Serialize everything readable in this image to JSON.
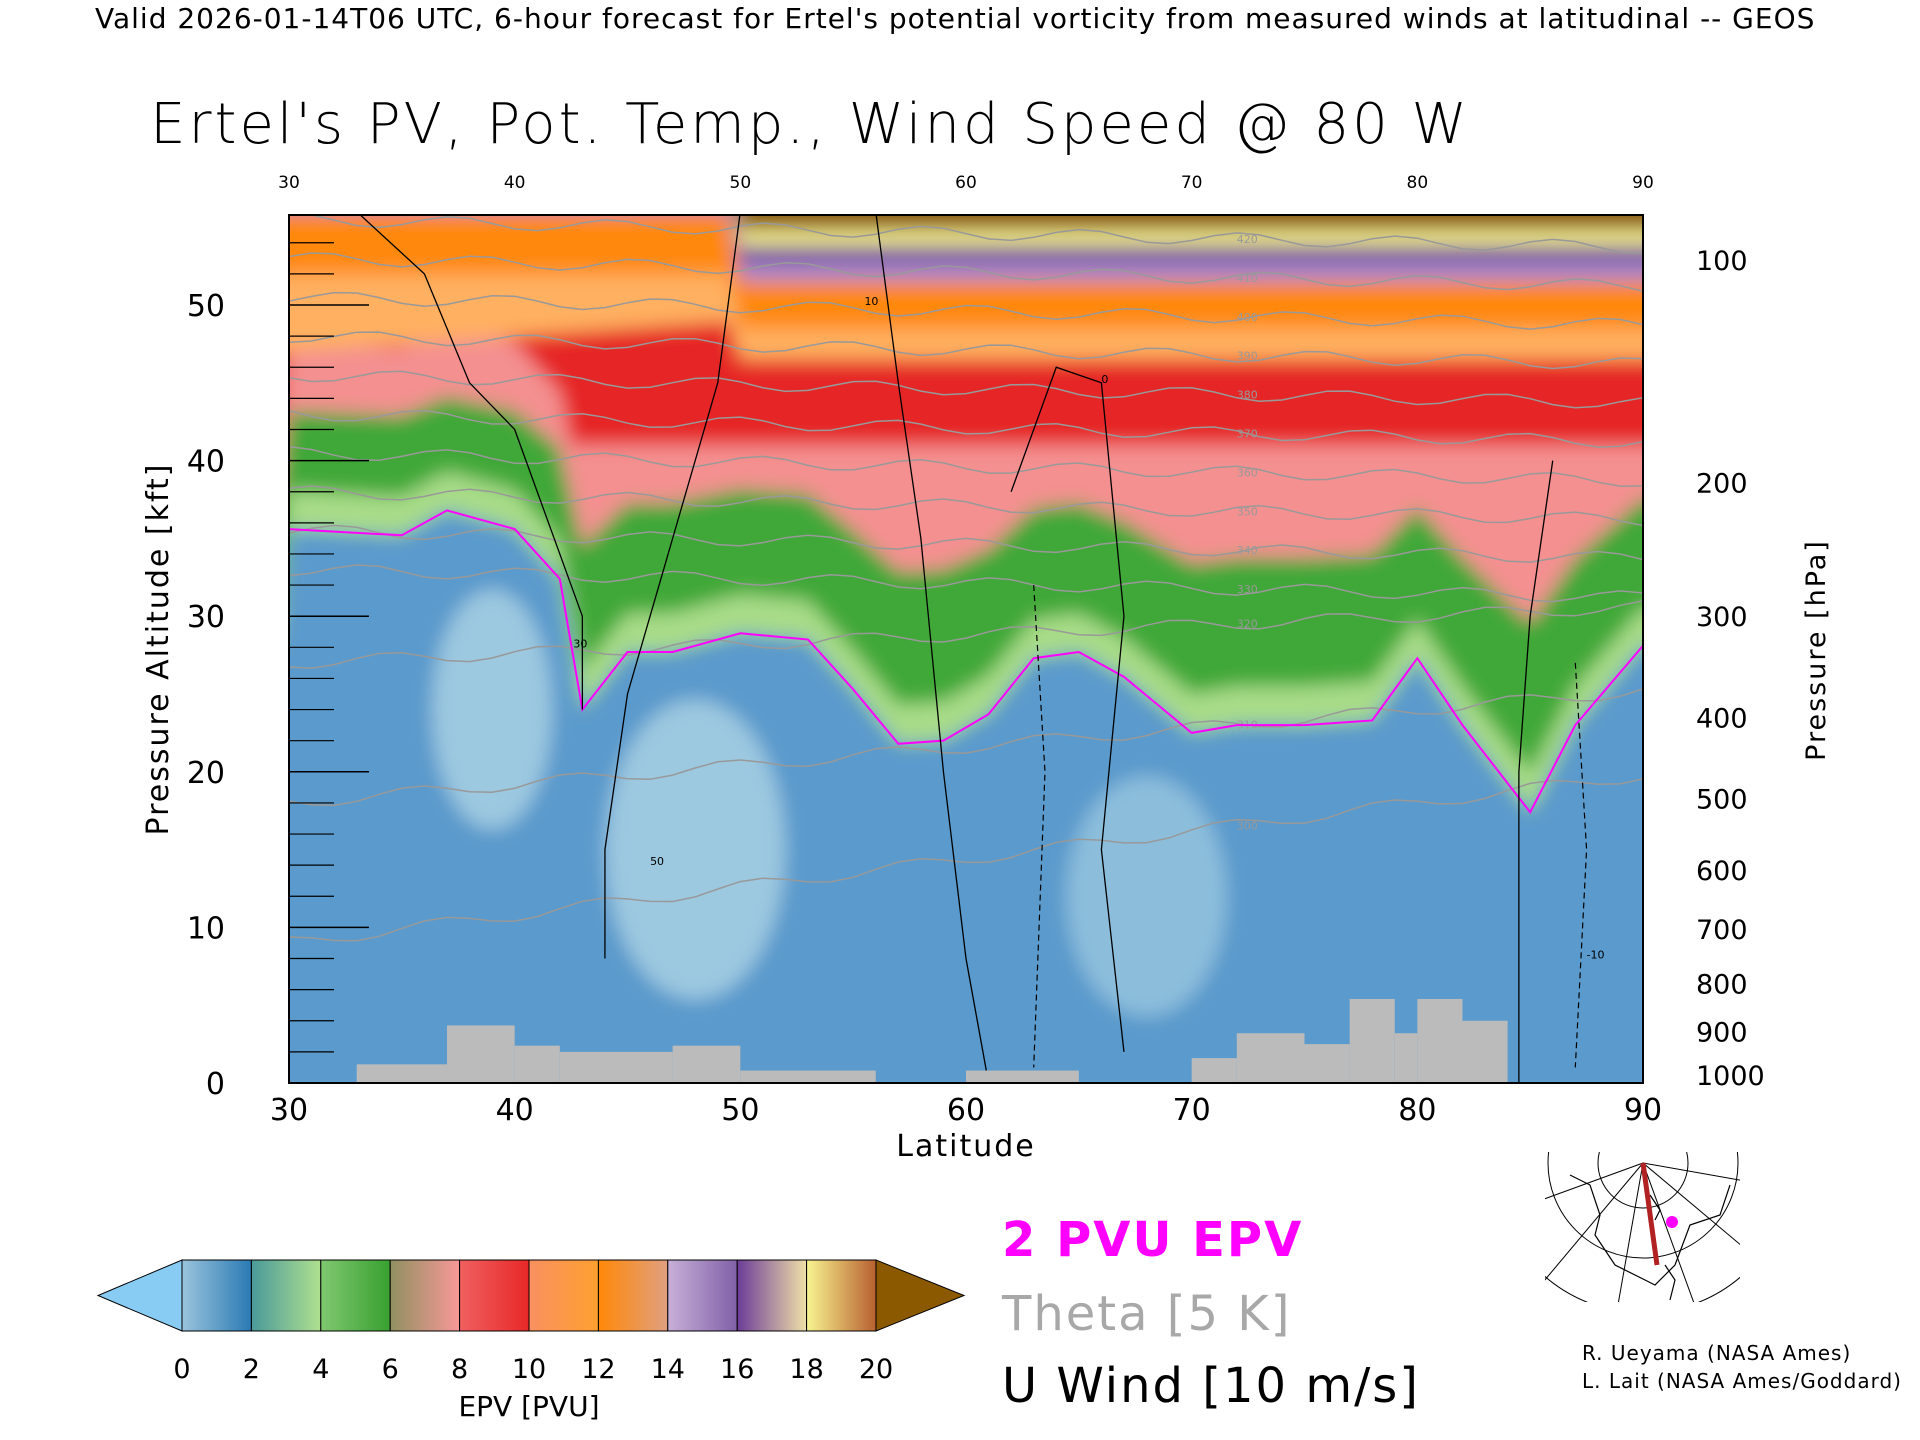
{
  "header": "Valid 2026-01-14T06 UTC, 6-hour forecast for Ertel's potential vorticity from measured winds at latitudinal -- GEOS",
  "chart_data": {
    "type": "heatmap",
    "title": "Ertel's PV, Pot. Temp., Wind Speed @ 80 W",
    "xlabel": "Latitude",
    "ylabel_left": "Pressure Altitude [kft]",
    "ylabel_right": "Pressure [hPa]",
    "xlim": [
      30,
      90
    ],
    "ylim_kft": [
      0,
      55.8
    ],
    "x_ticks": [
      "30",
      "40",
      "50",
      "60",
      "70",
      "80",
      "90"
    ],
    "x_tick_values": [
      30,
      40,
      50,
      60,
      70,
      80,
      90
    ],
    "y_ticks_left": [
      "0",
      "10",
      "20",
      "30",
      "40",
      "50"
    ],
    "y_tick_values_left": [
      0,
      10,
      20,
      30,
      40,
      50
    ],
    "y_ticks_right": [
      {
        "label": "100",
        "kft": 52.9
      },
      {
        "label": "200",
        "kft": 38.6
      },
      {
        "label": "300",
        "kft": 30.0
      },
      {
        "label": "400",
        "kft": 23.5
      },
      {
        "label": "500",
        "kft": 18.3
      },
      {
        "label": "600",
        "kft": 13.7
      },
      {
        "label": "700",
        "kft": 9.9
      },
      {
        "label": "800",
        "kft": 6.4
      },
      {
        "label": "900",
        "kft": 3.3
      },
      {
        "label": "1000",
        "kft": 0.5
      }
    ],
    "tropopause_2pvu_kft": {
      "lat": [
        30,
        35,
        37,
        40,
        42,
        43,
        45,
        47,
        50,
        53,
        55,
        57,
        59,
        61,
        63,
        65,
        67,
        70,
        72,
        75,
        78,
        80,
        82,
        85,
        87,
        90
      ],
      "kft": [
        35.6,
        35.2,
        36.8,
        35.6,
        32.4,
        24.0,
        27.7,
        27.7,
        28.9,
        28.5,
        25.3,
        21.8,
        22.0,
        23.7,
        27.3,
        27.7,
        26.1,
        22.5,
        23.0,
        23.0,
        23.3,
        27.3,
        23.0,
        17.4,
        23.0,
        28.1
      ]
    },
    "terrain_kft": [
      [
        33,
        37,
        1.2
      ],
      [
        37,
        40,
        3.7
      ],
      [
        40,
        42,
        2.4
      ],
      [
        42,
        47,
        2.0
      ],
      [
        47,
        50,
        2.4
      ],
      [
        50,
        56,
        0.8
      ],
      [
        60,
        65,
        0.8
      ],
      [
        70,
        72,
        1.6
      ],
      [
        72,
        75,
        3.2
      ],
      [
        75,
        77,
        2.5
      ],
      [
        77,
        79,
        5.4
      ],
      [
        79,
        80,
        3.2
      ],
      [
        80,
        82,
        5.4
      ],
      [
        82,
        84,
        4.0
      ]
    ],
    "theta_levels_K": [
      "300",
      "310",
      "320",
      "330",
      "340",
      "350",
      "360",
      "370",
      "380",
      "390",
      "400",
      "410",
      "420"
    ],
    "wind_contour_labels": [
      "10",
      "30",
      "50",
      "0",
      "-10"
    ],
    "colorbar": {
      "label": "EPV [PVU]",
      "ticks": [
        "0",
        "2",
        "4",
        "6",
        "8",
        "10",
        "12",
        "14",
        "16",
        "18",
        "20"
      ],
      "segments": [
        [
          "#9ac4dc",
          "#2a7ab4"
        ],
        [
          "#4a9a9a",
          "#b0e090"
        ],
        [
          "#80c870",
          "#38a030"
        ],
        [
          "#909060",
          "#f89898"
        ],
        [
          "#f06060",
          "#e82828"
        ],
        [
          "#f89060",
          "#ffa030"
        ],
        [
          "#ff8808",
          "#e0a080"
        ],
        [
          "#c8b0d8",
          "#8060a8"
        ],
        [
          "#6c3c98",
          "#f0e0a8"
        ],
        [
          "#f8f490",
          "#b86030"
        ]
      ],
      "under_color": "#88ccf4",
      "over_color": "#8b5a00"
    }
  },
  "legend": {
    "epv": "2 PVU EPV",
    "theta": "Theta [5 K]",
    "wind": "U Wind [10 m/s]",
    "epv_color": "#ff00ff",
    "theta_color": "#a0a0a0"
  },
  "credits": [
    "R. Ueyama (NASA Ames)",
    "L. Lait (NASA Ames/Goddard)"
  ]
}
